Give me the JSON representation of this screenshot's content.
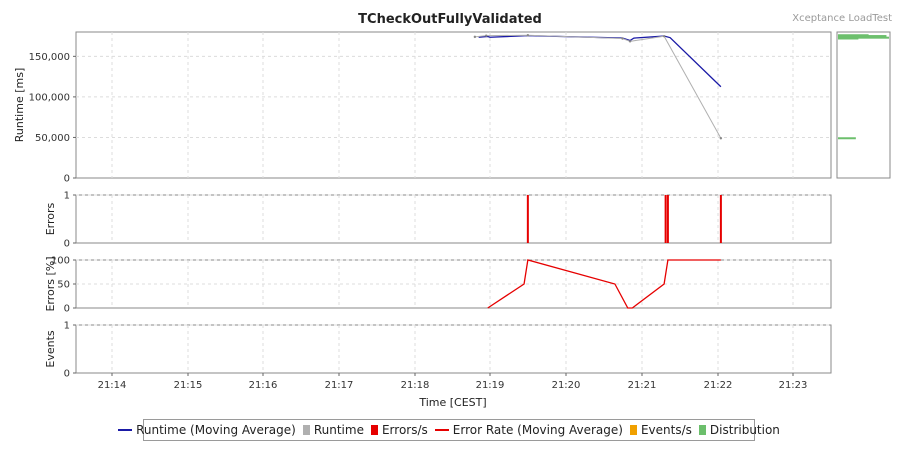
{
  "title": "TCheckOutFullyValidated",
  "brand": "Xceptance LoadTest",
  "xlabel": "Time [CEST]",
  "x_ticks": [
    "21:14",
    "21:15",
    "21:16",
    "21:17",
    "21:18",
    "21:19",
    "21:20",
    "21:21",
    "21:22",
    "21:23"
  ],
  "colors": {
    "runtime_avg": "#1a1aa6",
    "runtime": "#b0b0b0",
    "errors": "#e60000",
    "error_rate": "#e60000",
    "events": "#f0a000",
    "distribution": "#6cbf6c"
  },
  "legend": [
    {
      "label": "Runtime (Moving Average)",
      "kind": "line",
      "color": "#1a1aa6"
    },
    {
      "label": "Runtime",
      "kind": "box",
      "color": "#b0b0b0"
    },
    {
      "label": "Errors/s",
      "kind": "box",
      "color": "#e60000"
    },
    {
      "label": "Error Rate (Moving Average)",
      "kind": "line",
      "color": "#e60000"
    },
    {
      "label": "Events/s",
      "kind": "box",
      "color": "#f0a000"
    },
    {
      "label": "Distribution",
      "kind": "box",
      "color": "#6cbf6c"
    }
  ],
  "chart_data": [
    {
      "type": "line",
      "name": "runtime-panel",
      "ylabel": "Runtime [ms]",
      "ylim": [
        0,
        180000
      ],
      "y_ticks": [
        0,
        50000,
        100000,
        150000
      ],
      "y_tick_labels": [
        "0",
        "50,000",
        "100,000",
        "150,000"
      ],
      "grid": true,
      "series": [
        {
          "name": "Runtime (Moving Average)",
          "points": [
            [
              21.75,
              173500
            ],
            [
              21.87,
              174500
            ],
            [
              21.9,
              173500
            ],
            [
              22.4,
              175500
            ],
            [
              23.65,
              172500
            ],
            [
              23.75,
              169500
            ],
            [
              23.8,
              172500
            ],
            [
              24.2,
              175000
            ],
            [
              24.28,
              173000
            ],
            [
              24.95,
              112500
            ]
          ]
        },
        {
          "name": "Runtime",
          "points": [
            [
              21.7,
              174000
            ],
            [
              21.85,
              175500
            ],
            [
              22.4,
              176000
            ],
            [
              23.65,
              172000
            ],
            [
              23.75,
              168500
            ],
            [
              24.2,
              174800
            ],
            [
              24.95,
              49000
            ]
          ]
        }
      ],
      "distribution": [
        {
          "value": 173000,
          "length": 1.0
        },
        {
          "value": 175000,
          "length": 0.95
        },
        {
          "value": 176000,
          "length": 0.6
        },
        {
          "value": 172000,
          "length": 0.4
        },
        {
          "value": 49000,
          "length": 0.35
        }
      ]
    },
    {
      "type": "bar",
      "name": "errors-panel",
      "ylabel": "Errors",
      "ylim": [
        0,
        1
      ],
      "y_ticks": [
        0,
        1
      ],
      "y_tick_labels": [
        "0",
        "1"
      ],
      "grid": true,
      "series": [
        {
          "name": "Errors/s",
          "x": [
            22.4,
            24.22,
            24.25,
            24.95
          ],
          "values": [
            1,
            1,
            1,
            1
          ]
        }
      ]
    },
    {
      "type": "line",
      "name": "error-rate-panel",
      "ylabel": "Errors [%]",
      "ylim": [
        0,
        100
      ],
      "y_ticks": [
        0,
        50,
        100
      ],
      "y_tick_labels": [
        "0",
        "50",
        "100"
      ],
      "grid": true,
      "series": [
        {
          "name": "Error Rate (Moving Average)",
          "points": [
            [
              21.87,
              0
            ],
            [
              22.35,
              50
            ],
            [
              22.4,
              100
            ],
            [
              23.55,
              50
            ],
            [
              23.72,
              0
            ],
            [
              23.78,
              0
            ],
            [
              24.2,
              50
            ],
            [
              24.25,
              100
            ],
            [
              24.95,
              100
            ]
          ]
        }
      ]
    },
    {
      "type": "bar",
      "name": "events-panel",
      "ylabel": "Events",
      "ylim": [
        0,
        1
      ],
      "y_ticks": [
        0,
        1
      ],
      "y_tick_labels": [
        "0",
        "1"
      ],
      "grid": true,
      "series": []
    }
  ]
}
